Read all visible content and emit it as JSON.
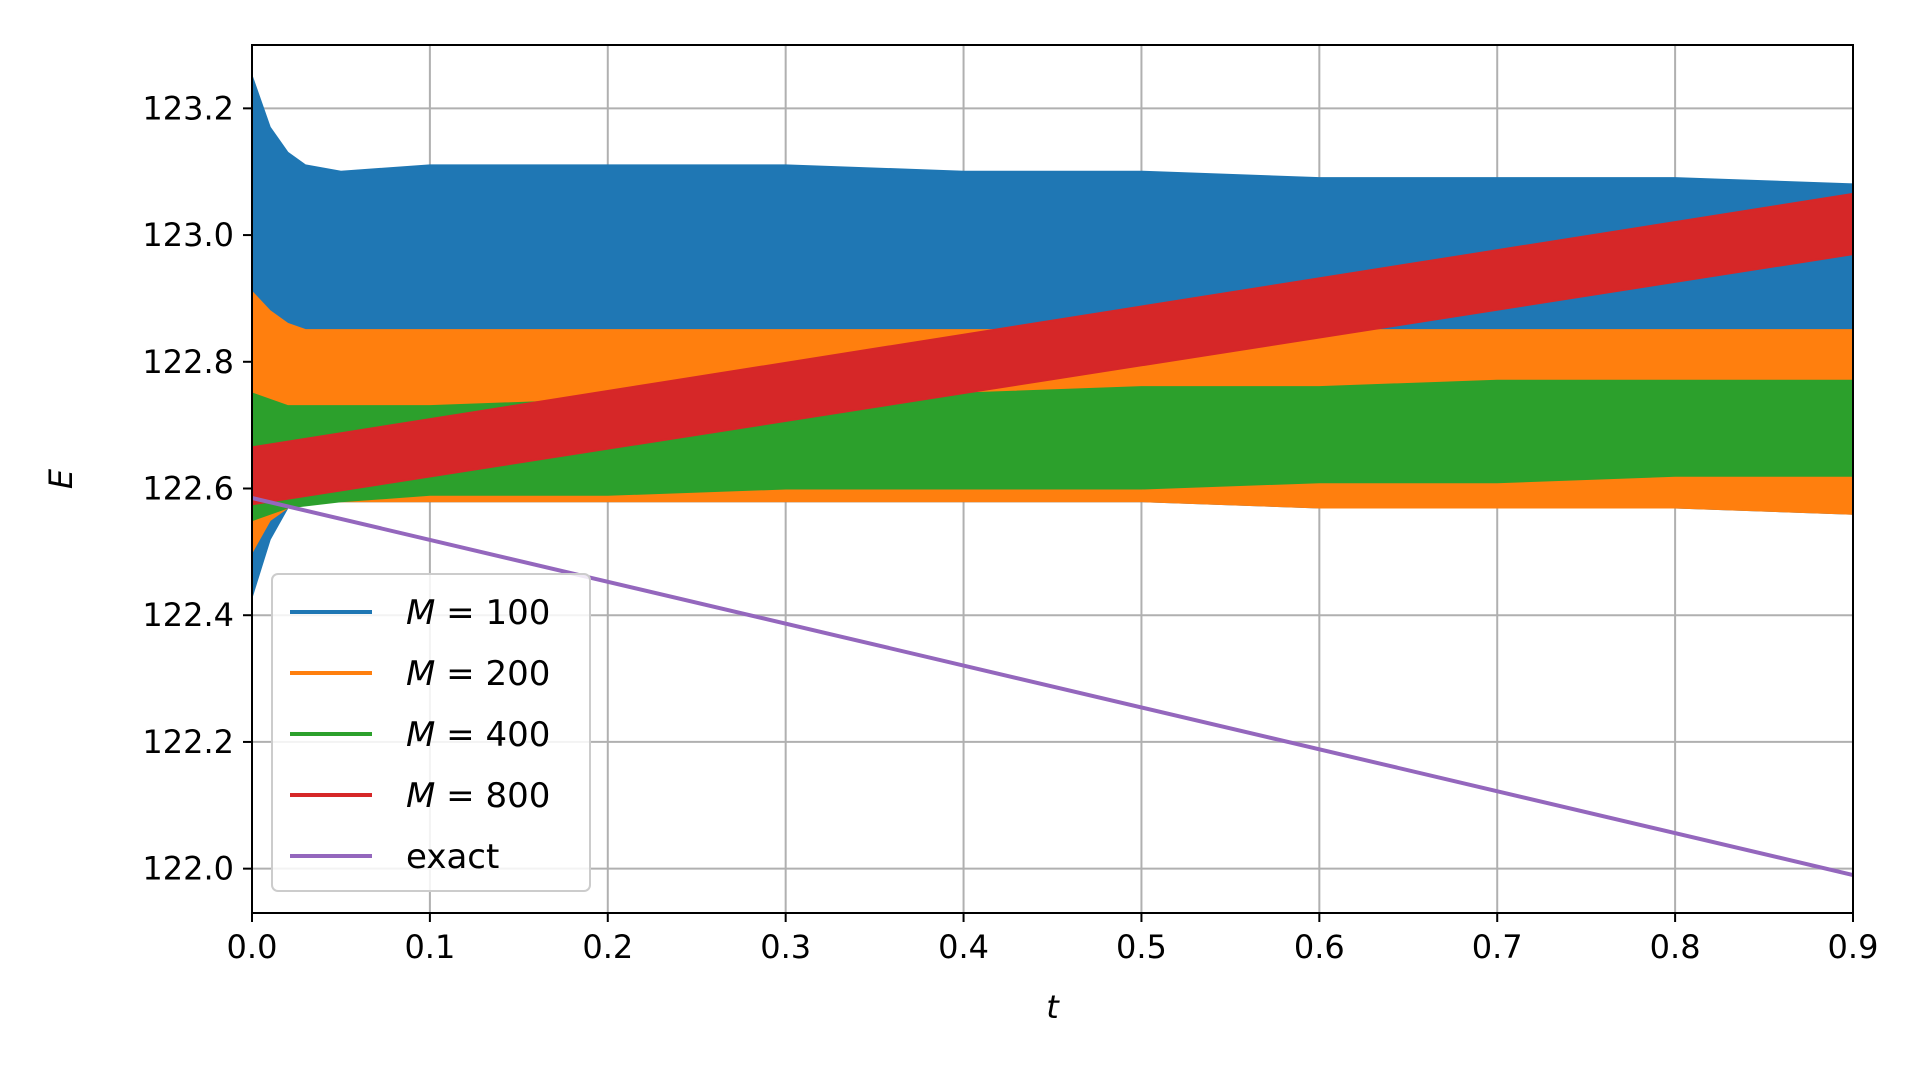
{
  "chart_data": {
    "type": "line",
    "title": "",
    "xlabel": "t",
    "ylabel": "E",
    "xlim": [
      0.0,
      0.9
    ],
    "ylim": [
      121.93,
      123.3
    ],
    "xticks": [
      "0.0",
      "0.1",
      "0.2",
      "0.3",
      "0.4",
      "0.5",
      "0.6",
      "0.7",
      "0.8",
      "0.9"
    ],
    "yticks": [
      "122.0",
      "122.2",
      "122.4",
      "122.6",
      "122.8",
      "123.0",
      "123.2"
    ],
    "grid": true,
    "legend_position": "lower-left",
    "series": [
      {
        "name_var": "M",
        "name_eq": " = ",
        "name_val": "100",
        "color": "#1f77b4",
        "kind": "band",
        "x": [
          0.0,
          0.01,
          0.02,
          0.03,
          0.05,
          0.1,
          0.2,
          0.3,
          0.4,
          0.5,
          0.6,
          0.7,
          0.8,
          0.9
        ],
        "lower": [
          122.43,
          122.52,
          122.57,
          122.58,
          122.58,
          122.58,
          122.58,
          122.58,
          122.58,
          122.58,
          122.57,
          122.57,
          122.57,
          122.56
        ],
        "upper": [
          123.25,
          123.17,
          123.13,
          123.11,
          123.1,
          123.11,
          123.11,
          123.11,
          123.1,
          123.1,
          123.09,
          123.09,
          123.09,
          123.08
        ]
      },
      {
        "name_var": "M",
        "name_eq": " = ",
        "name_val": "200",
        "color": "#ff7f0e",
        "kind": "band",
        "x": [
          0.0,
          0.01,
          0.02,
          0.03,
          0.05,
          0.1,
          0.2,
          0.3,
          0.4,
          0.5,
          0.6,
          0.7,
          0.8,
          0.9
        ],
        "lower": [
          122.5,
          122.55,
          122.57,
          122.58,
          122.58,
          122.58,
          122.58,
          122.58,
          122.58,
          122.58,
          122.57,
          122.57,
          122.57,
          122.56
        ],
        "upper": [
          122.91,
          122.88,
          122.86,
          122.85,
          122.85,
          122.85,
          122.85,
          122.85,
          122.85,
          122.85,
          122.85,
          122.85,
          122.85,
          122.85
        ]
      },
      {
        "name_var": "M",
        "name_eq": " = ",
        "name_val": "400",
        "color": "#2ca02c",
        "kind": "band",
        "x": [
          0.0,
          0.02,
          0.05,
          0.1,
          0.2,
          0.3,
          0.4,
          0.5,
          0.6,
          0.7,
          0.8,
          0.9
        ],
        "lower": [
          122.55,
          122.57,
          122.58,
          122.59,
          122.59,
          122.6,
          122.6,
          122.6,
          122.61,
          122.61,
          122.62,
          122.62
        ],
        "upper": [
          122.75,
          122.73,
          122.73,
          122.73,
          122.74,
          122.75,
          122.75,
          122.76,
          122.76,
          122.77,
          122.77,
          122.77
        ]
      },
      {
        "name_var": "M",
        "name_eq": " = ",
        "name_val": "800",
        "color": "#d62728",
        "kind": "band",
        "x": [
          0.0,
          0.9
        ],
        "lower": [
          122.575,
          122.97
        ],
        "upper": [
          122.665,
          123.065
        ]
      },
      {
        "name_var": "",
        "name_eq": "",
        "name_val": "exact",
        "color": "#9467bd",
        "kind": "line",
        "x": [
          0.0,
          0.9
        ],
        "y": [
          122.585,
          121.99
        ]
      }
    ]
  }
}
